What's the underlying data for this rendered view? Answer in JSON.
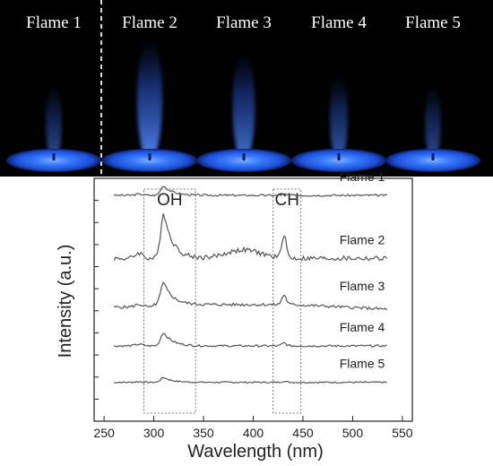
{
  "photos": {
    "labels": [
      "Flame 1",
      "Flame 2",
      "Flame 3",
      "Flame 4",
      "Flame 5"
    ],
    "flame_color": "#2a6cff",
    "plume_strength": [
      0.35,
      1.0,
      0.8,
      0.5,
      0.35
    ]
  },
  "chart_data": {
    "type": "line",
    "xlabel": "Wavelength (nm)",
    "ylabel": "Intensity (a.u.)",
    "xlim": [
      240,
      560
    ],
    "x_ticks": [
      250,
      300,
      350,
      400,
      450,
      500,
      550
    ],
    "grid": false,
    "x_range": [
      260,
      535
    ],
    "series": [
      {
        "name": "Flame 1",
        "baseline": 0.93,
        "noise": 0.004,
        "oh_peak": 0.04,
        "ch_peak": 0.005,
        "slope": 0.0,
        "bump": 0.0
      },
      {
        "name": "Flame 2",
        "baseline": 0.67,
        "noise": 0.01,
        "oh_peak": 0.19,
        "ch_peak": 0.1,
        "slope": 0.0,
        "bump": 0.035
      },
      {
        "name": "Flame 3",
        "baseline": 0.48,
        "noise": 0.006,
        "oh_peak": 0.09,
        "ch_peak": 0.04,
        "slope": 0.02,
        "bump": 0.0
      },
      {
        "name": "Flame 4",
        "baseline": 0.31,
        "noise": 0.004,
        "oh_peak": 0.055,
        "ch_peak": 0.012,
        "slope": 0.0,
        "bump": 0.0
      },
      {
        "name": "Flame 5",
        "baseline": 0.16,
        "noise": 0.003,
        "oh_peak": 0.02,
        "ch_peak": 0.005,
        "slope": 0.0,
        "bump": 0.0
      }
    ],
    "annotations": [
      {
        "label": "OH",
        "x_range": [
          290,
          342
        ]
      },
      {
        "label": "CH",
        "x_range": [
          420,
          448
        ]
      }
    ]
  }
}
